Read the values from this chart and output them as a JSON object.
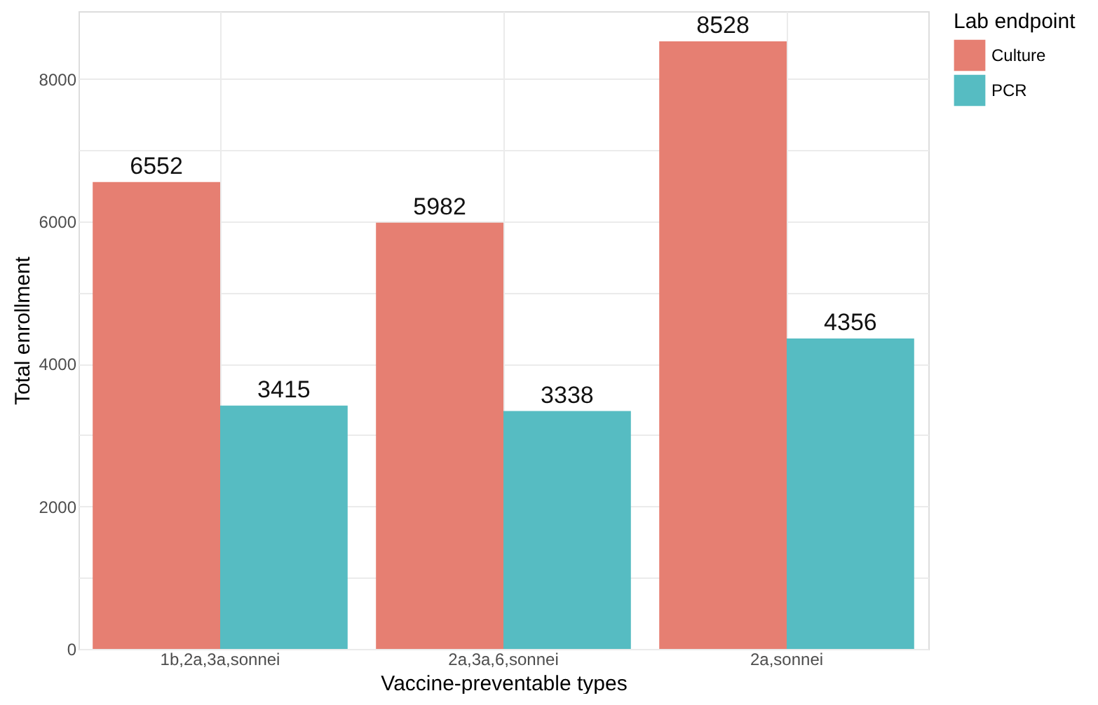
{
  "chart_data": {
    "type": "bar",
    "xlabel": "Vaccine-preventable types",
    "ylabel": "Total enrollment",
    "legend_title": "Lab endpoint",
    "categories": [
      "1b,2a,3a,sonnei",
      "2a,3a,6,sonnei",
      "2a,sonnei"
    ],
    "series": [
      {
        "name": "Culture",
        "color": "#e67f72",
        "values": [
          6552,
          5982,
          8528
        ]
      },
      {
        "name": "PCR",
        "color": "#56bcc2",
        "values": [
          3415,
          3338,
          4356
        ]
      }
    ],
    "ylim": [
      0,
      8950
    ],
    "yticks": [
      0,
      {
        "value": 1000,
        "label": null
      },
      2000,
      {
        "value": 3000,
        "label": null
      },
      4000,
      {
        "value": 5000,
        "label": null
      },
      6000,
      {
        "value": 7000,
        "label": null
      },
      8000
    ],
    "grid": true,
    "legend": "right",
    "data_labels": true
  }
}
